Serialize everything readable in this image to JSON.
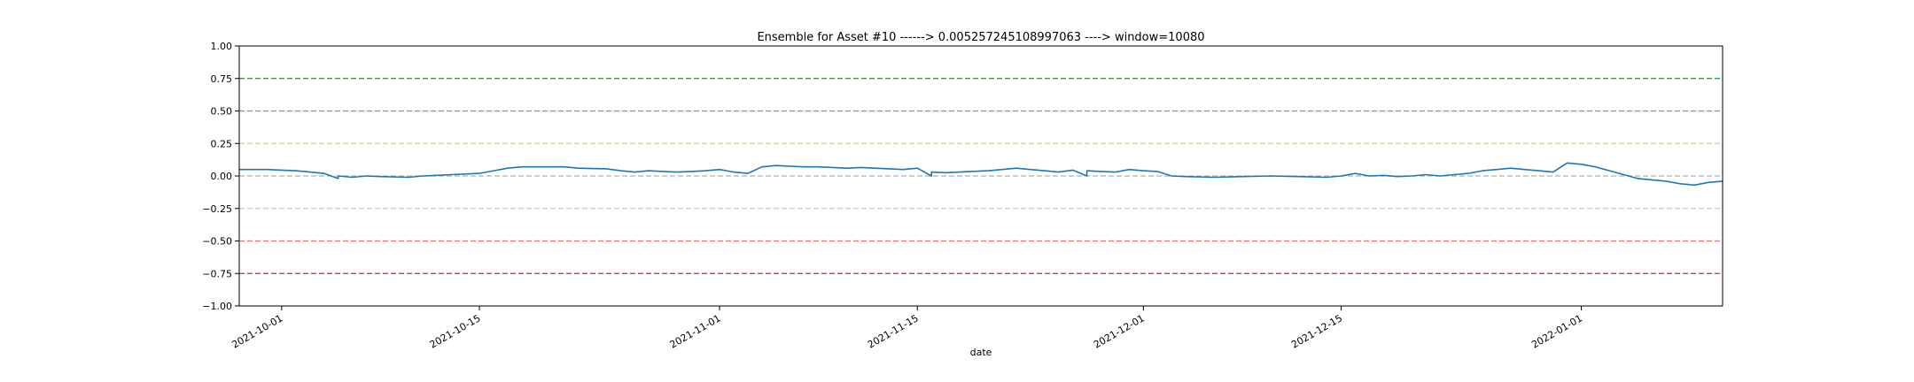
{
  "chart_data": {
    "type": "line",
    "title": "Ensemble for Asset #10 ------> 0.005257245108997063 ----> window=10080",
    "xlabel": "date",
    "ylabel": "",
    "xlim": [
      "2021-09-28",
      "2022-01-11"
    ],
    "ylim": [
      -1.0,
      1.0
    ],
    "x_ticks": [
      "2021-10-01",
      "2021-10-15",
      "2021-11-01",
      "2021-11-15",
      "2021-12-01",
      "2021-12-15",
      "2022-01-01"
    ],
    "y_ticks": [
      1.0,
      0.75,
      0.5,
      0.25,
      0.0,
      -0.25,
      -0.5,
      -0.75,
      -1.0
    ],
    "y_tick_labels": [
      "1.00",
      "0.75",
      "0.50",
      "0.25",
      "0.00",
      "−0.25",
      "−0.50",
      "−0.75",
      "−1.00"
    ],
    "reference_lines": [
      {
        "y": 0.75,
        "color": "#2e8b2e"
      },
      {
        "y": 0.5,
        "color": "#6aa86a"
      },
      {
        "y": 0.25,
        "color": "#b8dc9c"
      },
      {
        "y": 0.0,
        "color": "#b0b0b0"
      },
      {
        "y": -0.25,
        "color": "#f4b8b8"
      },
      {
        "y": -0.5,
        "color": "#e87070"
      },
      {
        "y": -0.75,
        "color": "#d62828"
      }
    ],
    "grid": false,
    "legend": "none",
    "series": [
      {
        "color": "#1f77b4",
        "points": [
          [
            "2021-09-28",
            0.05
          ],
          [
            "2021-09-30",
            0.05
          ],
          [
            "2021-10-01",
            0.045
          ],
          [
            "2021-10-02",
            0.04
          ],
          [
            "2021-10-03",
            0.03
          ],
          [
            "2021-10-04",
            0.02
          ],
          [
            "2021-10-05",
            -0.02
          ],
          [
            "2021-10-05",
            0.0
          ],
          [
            "2021-10-06",
            -0.01
          ],
          [
            "2021-10-07",
            0.0
          ],
          [
            "2021-10-08",
            -0.005
          ],
          [
            "2021-10-10",
            -0.01
          ],
          [
            "2021-10-11",
            0.0
          ],
          [
            "2021-10-12",
            0.005
          ],
          [
            "2021-10-13",
            0.01
          ],
          [
            "2021-10-15",
            0.02
          ],
          [
            "2021-10-16",
            0.04
          ],
          [
            "2021-10-17",
            0.06
          ],
          [
            "2021-10-18",
            0.07
          ],
          [
            "2021-10-20",
            0.07
          ],
          [
            "2021-10-21",
            0.07
          ],
          [
            "2021-10-22",
            0.06
          ],
          [
            "2021-10-24",
            0.055
          ],
          [
            "2021-10-25",
            0.04
          ],
          [
            "2021-10-26",
            0.03
          ],
          [
            "2021-10-27",
            0.04
          ],
          [
            "2021-10-28",
            0.035
          ],
          [
            "2021-10-29",
            0.03
          ],
          [
            "2021-10-30",
            0.035
          ],
          [
            "2021-10-31",
            0.04
          ],
          [
            "2021-11-01",
            0.05
          ],
          [
            "2021-11-02",
            0.03
          ],
          [
            "2021-11-03",
            0.02
          ],
          [
            "2021-11-04",
            0.07
          ],
          [
            "2021-11-05",
            0.08
          ],
          [
            "2021-11-06",
            0.075
          ],
          [
            "2021-11-07",
            0.07
          ],
          [
            "2021-11-08",
            0.07
          ],
          [
            "2021-11-09",
            0.065
          ],
          [
            "2021-11-10",
            0.06
          ],
          [
            "2021-11-11",
            0.065
          ],
          [
            "2021-11-12",
            0.06
          ],
          [
            "2021-11-13",
            0.055
          ],
          [
            "2021-11-14",
            0.05
          ],
          [
            "2021-11-15",
            0.06
          ],
          [
            "2021-11-16",
            0.0
          ],
          [
            "2021-11-16",
            0.03
          ],
          [
            "2021-11-17",
            0.025
          ],
          [
            "2021-11-18",
            0.03
          ],
          [
            "2021-11-20",
            0.04
          ],
          [
            "2021-11-21",
            0.05
          ],
          [
            "2021-11-22",
            0.06
          ],
          [
            "2021-11-23",
            0.05
          ],
          [
            "2021-11-24",
            0.04
          ],
          [
            "2021-11-25",
            0.03
          ],
          [
            "2021-11-26",
            0.045
          ],
          [
            "2021-11-27",
            0.0
          ],
          [
            "2021-11-27",
            0.04
          ],
          [
            "2021-11-28",
            0.035
          ],
          [
            "2021-11-29",
            0.03
          ],
          [
            "2021-11-30",
            0.05
          ],
          [
            "2021-12-01",
            0.04
          ],
          [
            "2021-12-02",
            0.035
          ],
          [
            "2021-12-03",
            0.0
          ],
          [
            "2021-12-04",
            -0.005
          ],
          [
            "2021-12-06",
            -0.01
          ],
          [
            "2021-12-08",
            -0.005
          ],
          [
            "2021-12-10",
            0.0
          ],
          [
            "2021-12-12",
            -0.005
          ],
          [
            "2021-12-14",
            -0.01
          ],
          [
            "2021-12-15",
            0.0
          ],
          [
            "2021-12-16",
            0.02
          ],
          [
            "2021-12-17",
            0.0
          ],
          [
            "2021-12-18",
            0.005
          ],
          [
            "2021-12-19",
            -0.005
          ],
          [
            "2021-12-20",
            0.0
          ],
          [
            "2021-12-21",
            0.01
          ],
          [
            "2021-12-22",
            0.0
          ],
          [
            "2021-12-23",
            0.01
          ],
          [
            "2021-12-24",
            0.02
          ],
          [
            "2021-12-25",
            0.04
          ],
          [
            "2021-12-26",
            0.05
          ],
          [
            "2021-12-27",
            0.06
          ],
          [
            "2021-12-28",
            0.05
          ],
          [
            "2021-12-29",
            0.04
          ],
          [
            "2021-12-30",
            0.03
          ],
          [
            "2021-12-31",
            0.1
          ],
          [
            "2022-01-01",
            0.09
          ],
          [
            "2022-01-02",
            0.07
          ],
          [
            "2022-01-03",
            0.04
          ],
          [
            "2022-01-04",
            0.01
          ],
          [
            "2022-01-05",
            -0.02
          ],
          [
            "2022-01-06",
            -0.03
          ],
          [
            "2022-01-07",
            -0.04
          ],
          [
            "2022-01-08",
            -0.06
          ],
          [
            "2022-01-09",
            -0.07
          ],
          [
            "2022-01-10",
            -0.05
          ],
          [
            "2022-01-11",
            -0.04
          ]
        ]
      }
    ]
  }
}
